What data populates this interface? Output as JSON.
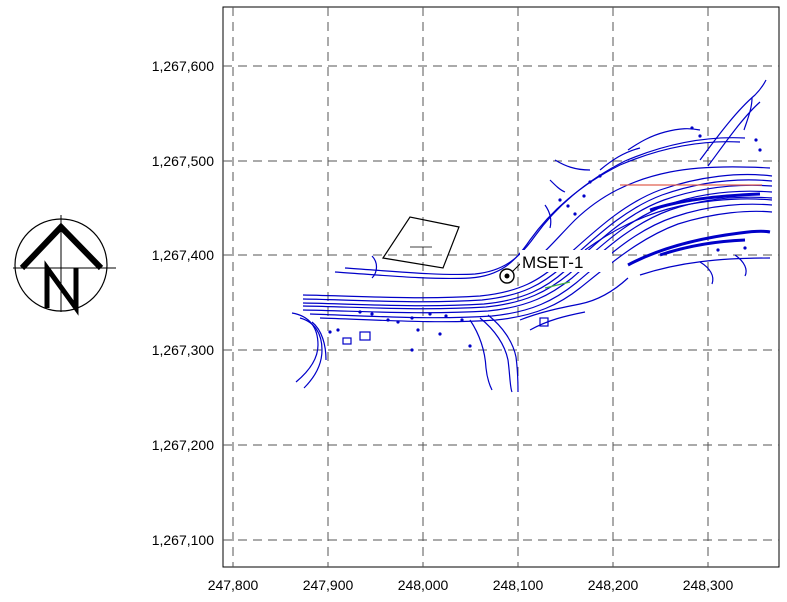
{
  "map": {
    "x_ticks": [
      "247,800",
      "247,900",
      "248,000",
      "248,100",
      "248,200",
      "248,300"
    ],
    "y_ticks": [
      "1,267,600",
      "1,267,500",
      "1,267,400",
      "1,267,300",
      "1,267,200",
      "1,267,100"
    ],
    "point_label": "MSET-1",
    "north_letter": "N"
  },
  "colors": {
    "linework": "#0000c8",
    "grid": "#555555",
    "accent_line": "#e06050",
    "accent_green": "#40b040"
  }
}
